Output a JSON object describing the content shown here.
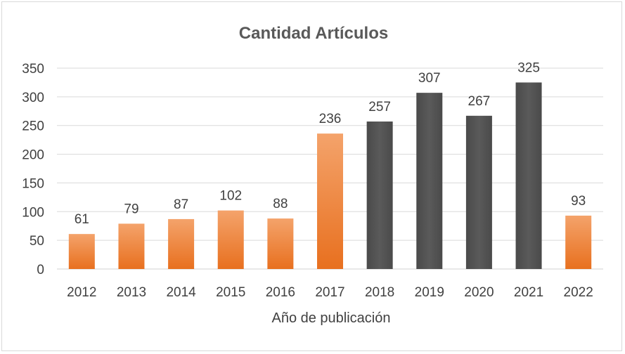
{
  "chart_data": {
    "type": "bar",
    "title": "Cantidad Artículos",
    "xlabel": "Año de publicación",
    "ylabel": "",
    "ylim": [
      0,
      350
    ],
    "yticks": [
      0,
      50,
      100,
      150,
      200,
      250,
      300,
      350
    ],
    "categories": [
      "2012",
      "2013",
      "2014",
      "2015",
      "2016",
      "2017",
      "2018",
      "2019",
      "2020",
      "2021",
      "2022"
    ],
    "values": [
      61,
      79,
      87,
      102,
      88,
      236,
      257,
      307,
      267,
      325,
      93
    ],
    "bar_colors": [
      "#ed7d31",
      "#ed7d31",
      "#ed7d31",
      "#ed7d31",
      "#ed7d31",
      "#ed7d31",
      "#595959",
      "#595959",
      "#595959",
      "#595959",
      "#ed7d31"
    ],
    "grid": true,
    "legend": "none"
  }
}
